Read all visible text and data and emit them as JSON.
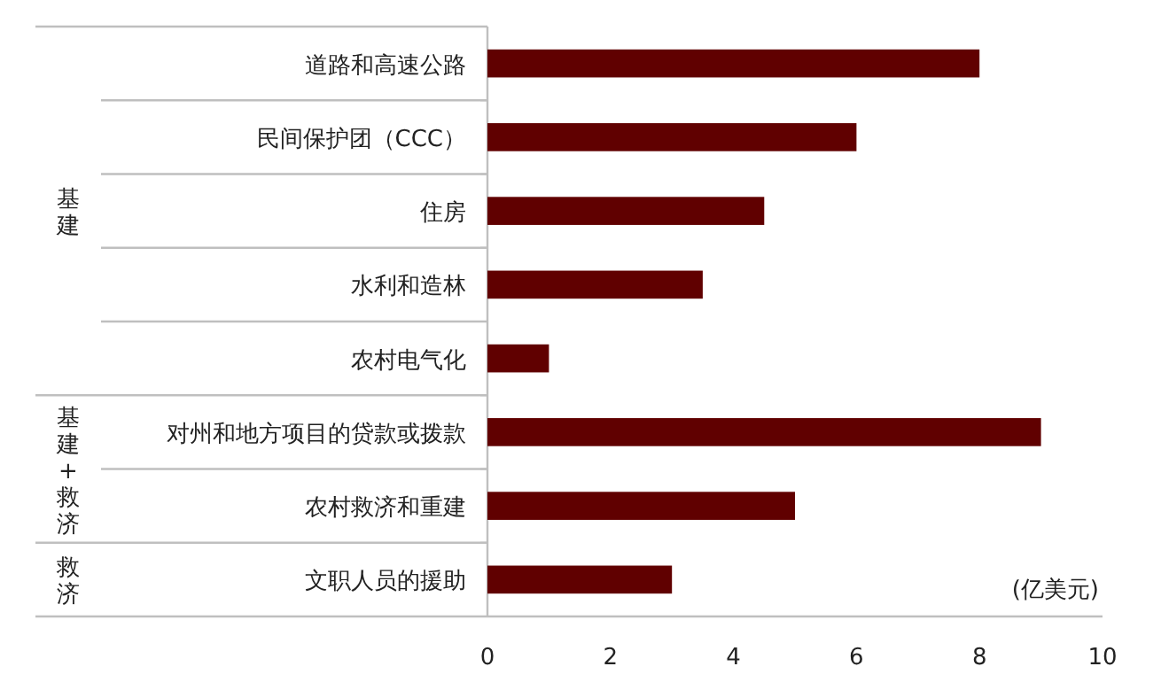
{
  "chart_data": {
    "type": "bar",
    "orientation": "horizontal",
    "categories": [
      "道路和高速公路",
      "民间保护团（CCC）",
      "住房",
      "水利和造林",
      "农村电气化",
      "对州和地方项目的贷款或拨款",
      "农村救济和重建",
      "文职人员的援助"
    ],
    "values": [
      8,
      6,
      4.5,
      3.5,
      1,
      9,
      5,
      3
    ],
    "color": "#600000",
    "xlim": [
      0,
      10
    ],
    "xticks": [
      0,
      2,
      4,
      6,
      8,
      10
    ],
    "xlabel": "(亿美元)",
    "annotations": [
      "基建",
      "基建+救济",
      "救济"
    ]
  }
}
